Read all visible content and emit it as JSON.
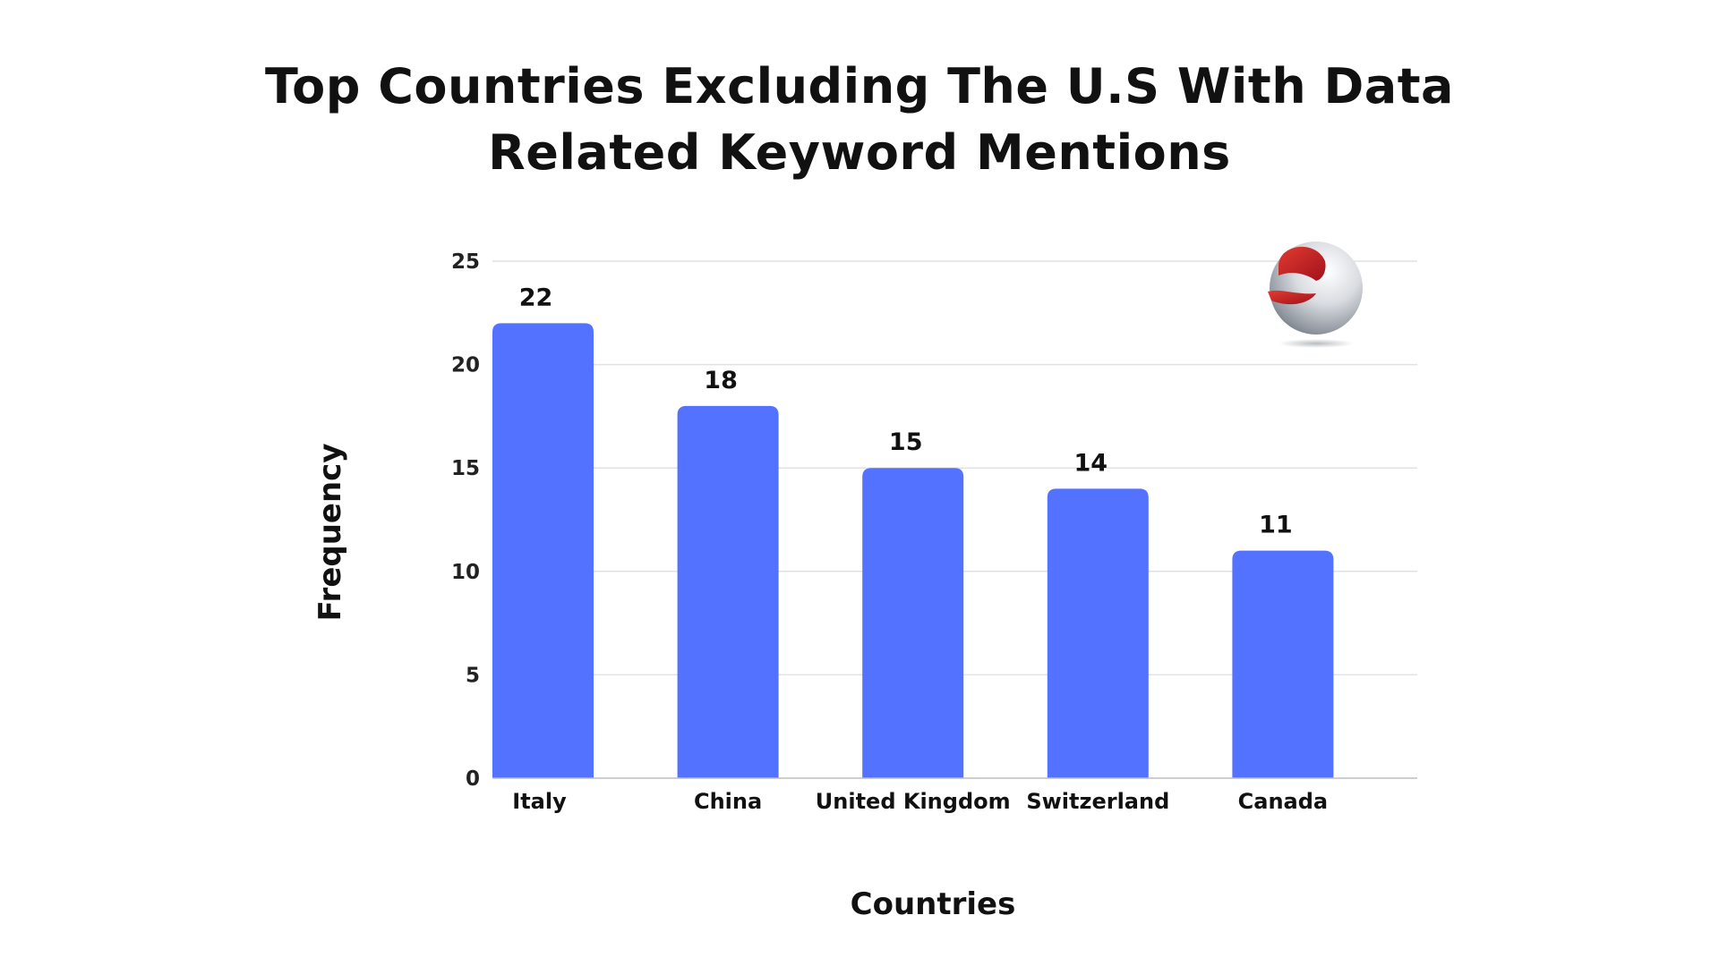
{
  "page": {
    "title_lines": [
      "Top Countries Excluding The U.S With Data",
      "Related Keyword Mentions"
    ]
  },
  "colors": {
    "bar": "#5372FF",
    "gridline": "#E2E2E2",
    "logo_red": "#C8242A",
    "logo_sphere": "#C9CDD3"
  },
  "logo": {
    "icon": "red-swoosh-sphere-logo-icon"
  },
  "chart_data": {
    "type": "bar",
    "title": "Top Countries Excluding The U.S With Data Related Keyword Mentions",
    "xlabel": "Countries",
    "ylabel": "Frequency",
    "categories": [
      "Italy",
      "China",
      "United Kingdom",
      "Switzerland",
      "Canada"
    ],
    "values": [
      22,
      18,
      15,
      14,
      11
    ],
    "ylim": [
      0,
      25
    ],
    "yticks": [
      0,
      5,
      10,
      15,
      20,
      25
    ],
    "grid": true,
    "legend": "none",
    "data_labels": true
  }
}
